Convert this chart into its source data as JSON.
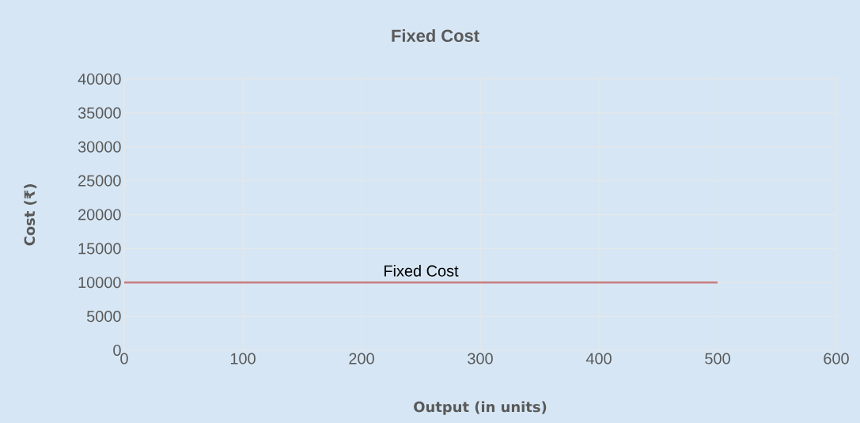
{
  "chart_data": {
    "type": "line",
    "title": "Fixed Cost",
    "xlabel": "Output (in units)",
    "ylabel": "Cost (₹)",
    "x": [
      0,
      500
    ],
    "series": [
      {
        "name": "Fixed Cost",
        "color": "#c97d7f",
        "values": [
          10000,
          10000
        ]
      }
    ],
    "xlim": [
      0,
      600
    ],
    "xticks": [
      0,
      100,
      200,
      300,
      400,
      500,
      600
    ],
    "ylim": [
      0,
      40000
    ],
    "yticks": [
      0,
      5000,
      10000,
      15000,
      20000,
      25000,
      30000,
      35000,
      40000
    ],
    "grid": true,
    "legend": false,
    "marker": "none",
    "line_style": "solid"
  }
}
